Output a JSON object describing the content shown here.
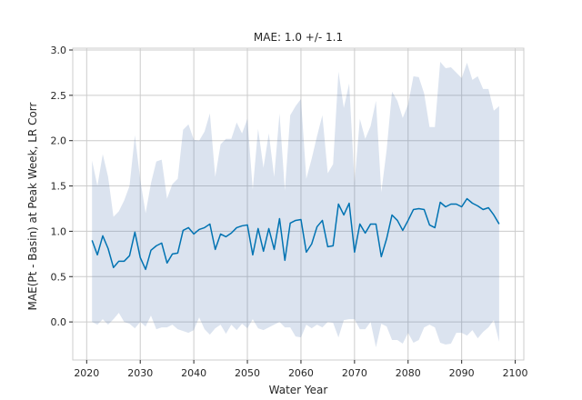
{
  "chart_data": {
    "type": "line",
    "title": "MAE: 1.0 +/- 1.1",
    "xlabel": "Water Year",
    "ylabel": "MAE(Pt - Basin) at Peak Week, LR Corr",
    "xlim": [
      2017.4,
      2101.6
    ],
    "ylim": [
      -0.42,
      3.02
    ],
    "xticks": [
      2020,
      2030,
      2040,
      2050,
      2060,
      2070,
      2080,
      2090,
      2100
    ],
    "xtick_labels": [
      "2020",
      "2030",
      "2040",
      "2050",
      "2060",
      "2070",
      "2080",
      "2090",
      "2100"
    ],
    "yticks": [
      0.0,
      0.5,
      1.0,
      1.5,
      2.0,
      2.5,
      3.0
    ],
    "ytick_labels": [
      "0.0",
      "0.5",
      "1.0",
      "1.5",
      "2.0",
      "2.5",
      "3.0"
    ],
    "grid": true,
    "colors": {
      "line": "#0173b2",
      "band": "#4c72b0",
      "grid": "#cccccc",
      "spine": "#cccccc"
    },
    "x": [
      2021,
      2022,
      2023,
      2024,
      2025,
      2026,
      2027,
      2028,
      2029,
      2030,
      2031,
      2032,
      2033,
      2034,
      2035,
      2036,
      2037,
      2038,
      2039,
      2040,
      2041,
      2042,
      2043,
      2044,
      2045,
      2046,
      2047,
      2048,
      2049,
      2050,
      2051,
      2052,
      2053,
      2054,
      2055,
      2056,
      2057,
      2058,
      2059,
      2060,
      2061,
      2062,
      2063,
      2064,
      2065,
      2066,
      2067,
      2068,
      2069,
      2070,
      2071,
      2072,
      2073,
      2074,
      2075,
      2076,
      2077,
      2078,
      2079,
      2080,
      2081,
      2082,
      2083,
      2084,
      2085,
      2086,
      2087,
      2088,
      2089,
      2090,
      2091,
      2092,
      2093,
      2094,
      2095,
      2096,
      2097
    ],
    "series": [
      {
        "values": [
          0.9,
          0.74,
          0.95,
          0.81,
          0.6,
          0.67,
          0.67,
          0.73,
          0.99,
          0.71,
          0.58,
          0.79,
          0.84,
          0.87,
          0.65,
          0.75,
          0.76,
          1.01,
          1.04,
          0.97,
          1.02,
          1.04,
          1.08,
          0.8,
          0.97,
          0.94,
          0.98,
          1.04,
          1.06,
          1.07,
          0.74,
          1.03,
          0.78,
          1.03,
          0.8,
          1.14,
          0.68,
          1.09,
          1.12,
          1.13,
          0.77,
          0.86,
          1.05,
          1.12,
          0.83,
          0.84,
          1.3,
          1.18,
          1.31,
          0.77,
          1.08,
          0.98,
          1.08,
          1.08,
          0.72,
          0.92,
          1.18,
          1.12,
          1.01,
          1.12,
          1.24,
          1.25,
          1.24,
          1.07,
          1.04,
          1.32,
          1.27,
          1.3,
          1.3,
          1.27,
          1.36,
          1.31,
          1.28,
          1.24,
          1.26,
          1.18,
          1.08
        ],
        "lower": [
          0.0,
          -0.03,
          0.03,
          -0.03,
          0.03,
          0.1,
          0.0,
          -0.02,
          -0.07,
          0.0,
          -0.05,
          0.07,
          -0.08,
          -0.06,
          -0.06,
          -0.03,
          -0.08,
          -0.1,
          -0.12,
          -0.09,
          0.05,
          -0.08,
          -0.14,
          -0.07,
          -0.03,
          -0.13,
          -0.03,
          -0.09,
          -0.02,
          -0.07,
          0.03,
          -0.07,
          -0.09,
          -0.06,
          -0.03,
          0.0,
          -0.06,
          -0.06,
          -0.16,
          -0.17,
          -0.03,
          -0.07,
          -0.03,
          -0.06,
          0.0,
          -0.01,
          -0.17,
          0.02,
          0.03,
          0.03,
          -0.08,
          -0.08,
          0.0,
          -0.28,
          -0.02,
          -0.05,
          -0.2,
          -0.2,
          -0.24,
          -0.12,
          -0.23,
          -0.2,
          -0.06,
          -0.03,
          -0.06,
          -0.23,
          -0.25,
          -0.24,
          -0.12,
          -0.12,
          -0.15,
          -0.09,
          -0.18,
          -0.11,
          -0.06,
          0.02,
          -0.22
        ],
        "upper": [
          1.78,
          1.5,
          1.85,
          1.6,
          1.16,
          1.22,
          1.34,
          1.5,
          2.06,
          1.57,
          1.2,
          1.53,
          1.77,
          1.79,
          1.36,
          1.52,
          1.58,
          2.12,
          2.18,
          2.01,
          2.0,
          2.1,
          2.3,
          1.6,
          1.96,
          2.02,
          2.02,
          2.2,
          2.08,
          2.24,
          1.46,
          2.13,
          1.7,
          2.08,
          1.6,
          2.3,
          1.45,
          2.28,
          2.38,
          2.46,
          1.58,
          1.8,
          2.05,
          2.28,
          1.64,
          1.74,
          2.76,
          2.36,
          2.63,
          1.54,
          2.24,
          2.02,
          2.16,
          2.44,
          1.43,
          1.9,
          2.54,
          2.44,
          2.25,
          2.4,
          2.71,
          2.7,
          2.52,
          2.15,
          2.15,
          2.87,
          2.8,
          2.81,
          2.75,
          2.69,
          2.86,
          2.67,
          2.71,
          2.57,
          2.57,
          2.33,
          2.38
        ]
      }
    ]
  }
}
